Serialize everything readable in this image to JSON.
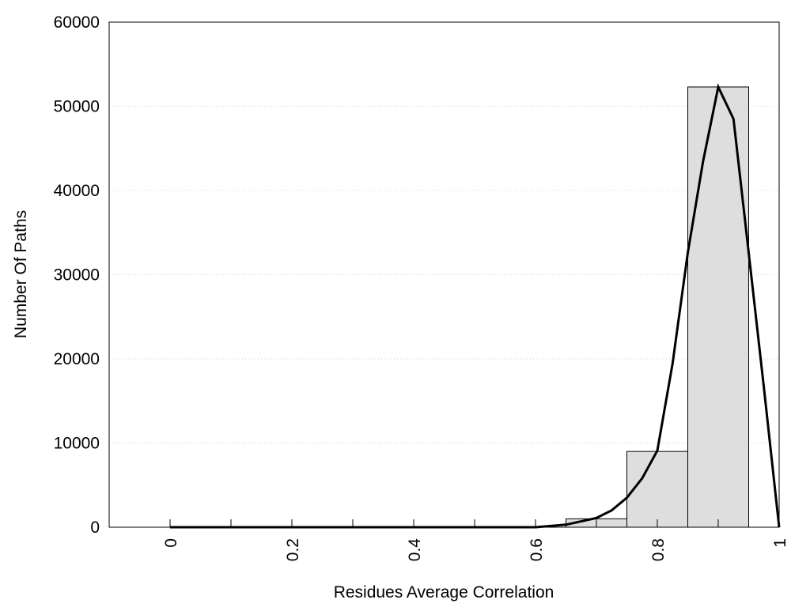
{
  "chart_data": {
    "type": "bar",
    "title": "",
    "xlabel": "Residues Average Correlation",
    "ylabel": "Number Of Paths",
    "xlim": [
      -0.1,
      1.0
    ],
    "ylim": [
      0,
      60000
    ],
    "grid": "horizontal dotted",
    "x_ticks": [
      "0",
      "0.2",
      "0.4",
      "0.6",
      "0.8",
      "1"
    ],
    "y_ticks": [
      "0",
      "10000",
      "20000",
      "30000",
      "40000",
      "50000",
      "60000"
    ],
    "bars": {
      "bin_edges": [
        0.65,
        0.75,
        0.85,
        0.95
      ],
      "values": [
        1000,
        9000,
        52300
      ],
      "fill": "#dedede"
    },
    "curve": {
      "x": [
        0,
        0.6,
        0.65,
        0.7,
        0.725,
        0.75,
        0.775,
        0.8,
        0.825,
        0.85,
        0.875,
        0.9,
        0.925,
        0.95,
        0.975,
        1.0
      ],
      "y": [
        0,
        0,
        300,
        1100,
        2000,
        3500,
        5800,
        9100,
        19400,
        32600,
        43400,
        52300,
        48500,
        32600,
        16600,
        0
      ],
      "color": "#000000"
    }
  }
}
